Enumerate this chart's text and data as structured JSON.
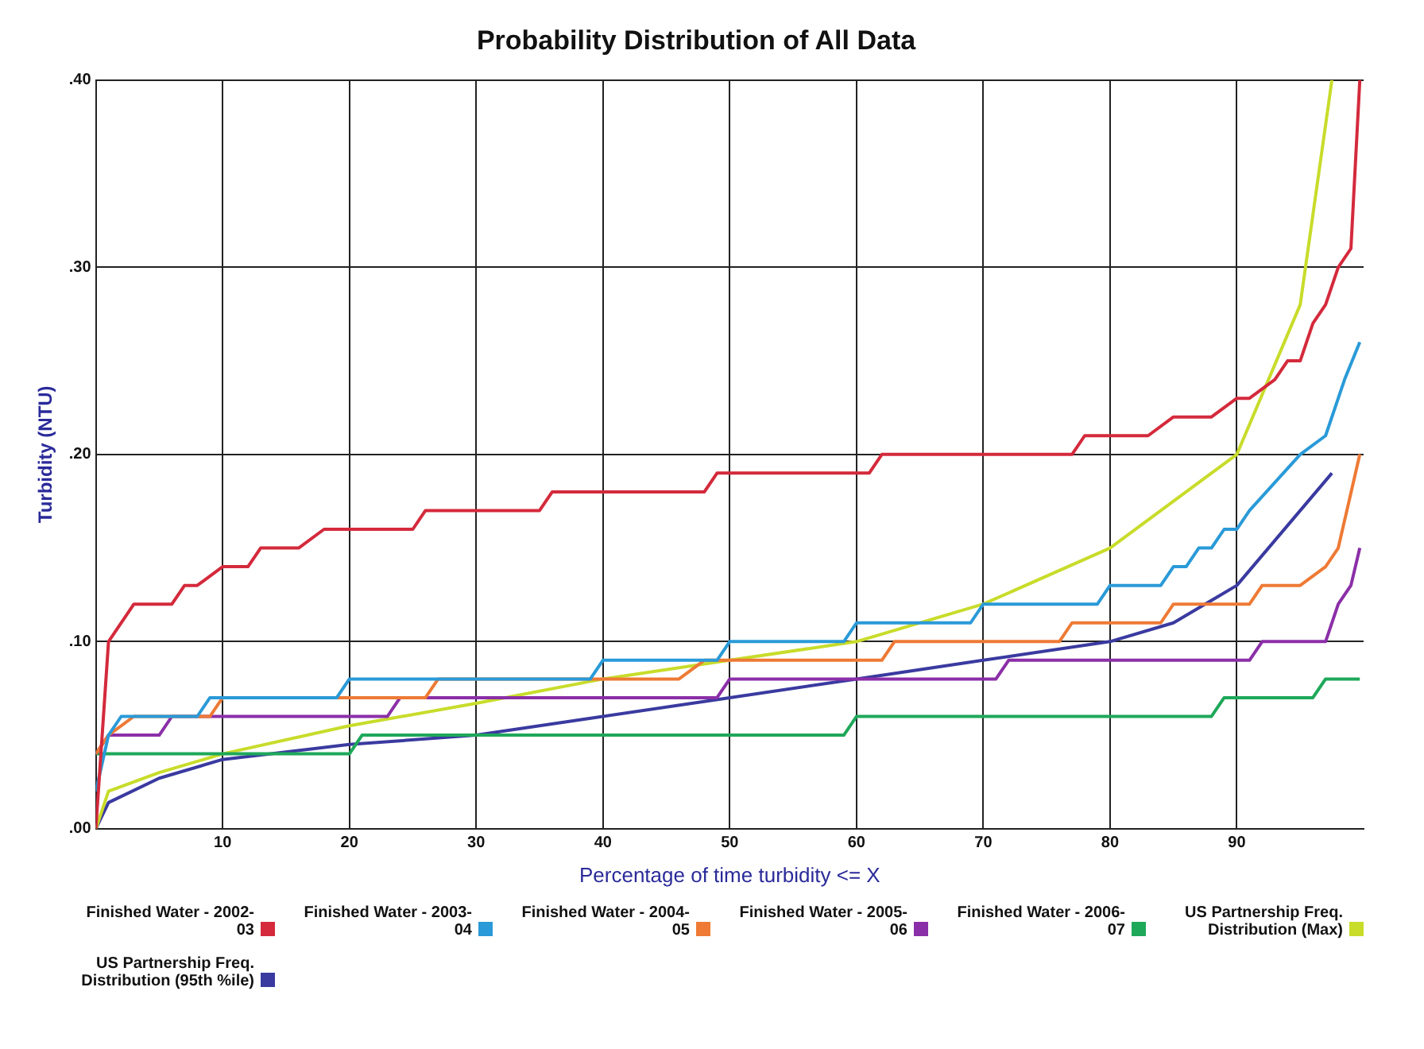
{
  "chart_data": {
    "type": "line",
    "title": "Probability Distribution of All Data",
    "xlabel": "Percentage of time turbidity <= X",
    "ylabel": "Turbidity (NTU)",
    "xlim": [
      0,
      100
    ],
    "xticks": [
      10,
      20,
      30,
      40,
      50,
      60,
      70,
      80,
      90
    ],
    "ylim": [
      0,
      0.4
    ],
    "yticks": [
      {
        "value": 0,
        "label": ".00"
      },
      {
        "value": 0.1,
        "label": ".10"
      },
      {
        "value": 0.2,
        "label": ".20"
      },
      {
        "value": 0.3,
        "label": ".30"
      },
      {
        "value": 0.4,
        "label": ".40"
      }
    ],
    "grid": true,
    "legend": "bottom",
    "marker": "none",
    "line_style": "solid",
    "series": [
      {
        "name": "Finished Water - 2002-03",
        "color": "#d42a3c",
        "x": [
          0,
          1,
          3,
          6,
          7,
          8,
          10,
          12,
          13,
          16,
          18,
          25,
          26,
          35,
          36,
          48,
          49,
          61,
          62,
          77,
          78,
          83,
          85,
          88,
          90,
          91,
          93,
          94,
          95,
          96,
          97,
          98,
          99,
          99.7
        ],
        "values": [
          0,
          0.1,
          0.12,
          0.12,
          0.13,
          0.13,
          0.14,
          0.14,
          0.15,
          0.15,
          0.16,
          0.16,
          0.17,
          0.17,
          0.18,
          0.18,
          0.19,
          0.19,
          0.2,
          0.2,
          0.21,
          0.21,
          0.22,
          0.22,
          0.23,
          0.23,
          0.24,
          0.25,
          0.25,
          0.27,
          0.28,
          0.3,
          0.31,
          0.4
        ]
      },
      {
        "name": "Finished Water - 2003-04",
        "color": "#2a9ad8",
        "x": [
          0,
          1,
          2,
          8,
          9,
          19,
          20,
          39,
          40,
          49,
          50,
          59,
          60,
          69,
          70,
          79,
          80,
          84,
          85,
          86,
          87,
          88,
          89,
          90,
          91,
          95,
          97,
          98.5,
          99.7
        ],
        "values": [
          0.02,
          0.05,
          0.06,
          0.06,
          0.07,
          0.07,
          0.08,
          0.08,
          0.09,
          0.09,
          0.1,
          0.1,
          0.11,
          0.11,
          0.12,
          0.12,
          0.13,
          0.13,
          0.14,
          0.14,
          0.15,
          0.15,
          0.16,
          0.16,
          0.17,
          0.2,
          0.21,
          0.24,
          0.26
        ]
      },
      {
        "name": "Finished Water - 2004-05",
        "color": "#ee7a35",
        "x": [
          0,
          1,
          3,
          9,
          10,
          26,
          27,
          46,
          48,
          62,
          63,
          76,
          77,
          84,
          85,
          91,
          92,
          95,
          97,
          98,
          99.7
        ],
        "values": [
          0.04,
          0.05,
          0.06,
          0.06,
          0.07,
          0.07,
          0.08,
          0.08,
          0.09,
          0.09,
          0.1,
          0.1,
          0.11,
          0.11,
          0.12,
          0.12,
          0.13,
          0.13,
          0.14,
          0.15,
          0.2
        ]
      },
      {
        "name": "Finished Water - 2005-06",
        "color": "#8b2fa8",
        "x": [
          0,
          1,
          5,
          6,
          23,
          24,
          49,
          50,
          71,
          72,
          91,
          92,
          97,
          98,
          99,
          99.7
        ],
        "values": [
          0.04,
          0.05,
          0.05,
          0.06,
          0.06,
          0.07,
          0.07,
          0.08,
          0.08,
          0.09,
          0.09,
          0.1,
          0.1,
          0.12,
          0.13,
          0.15
        ]
      },
      {
        "name": "Finished Water - 2006-07",
        "color": "#1ea85a",
        "x": [
          0,
          20,
          21,
          59,
          60,
          88,
          89,
          96,
          97,
          99.7
        ],
        "values": [
          0.04,
          0.04,
          0.05,
          0.05,
          0.06,
          0.06,
          0.07,
          0.07,
          0.08,
          0.08
        ]
      },
      {
        "name": "US Partnership Freq. Distribution (Max)",
        "color": "#c8dc2a",
        "x": [
          0,
          1,
          5,
          10,
          20,
          30,
          40,
          50,
          60,
          70,
          80,
          90,
          95,
          97.5
        ],
        "values": [
          0,
          0.02,
          0.03,
          0.04,
          0.055,
          0.067,
          0.08,
          0.09,
          0.1,
          0.12,
          0.15,
          0.2,
          0.28,
          0.4
        ]
      },
      {
        "name": "US Partnership Freq. Distribution (95th %ile)",
        "color": "#3a3aa0",
        "x": [
          0,
          1,
          5,
          10,
          20,
          30,
          40,
          50,
          60,
          70,
          80,
          85,
          90,
          97.5
        ],
        "values": [
          0,
          0.014,
          0.027,
          0.037,
          0.045,
          0.05,
          0.06,
          0.07,
          0.08,
          0.09,
          0.1,
          0.11,
          0.13,
          0.19
        ]
      }
    ]
  }
}
